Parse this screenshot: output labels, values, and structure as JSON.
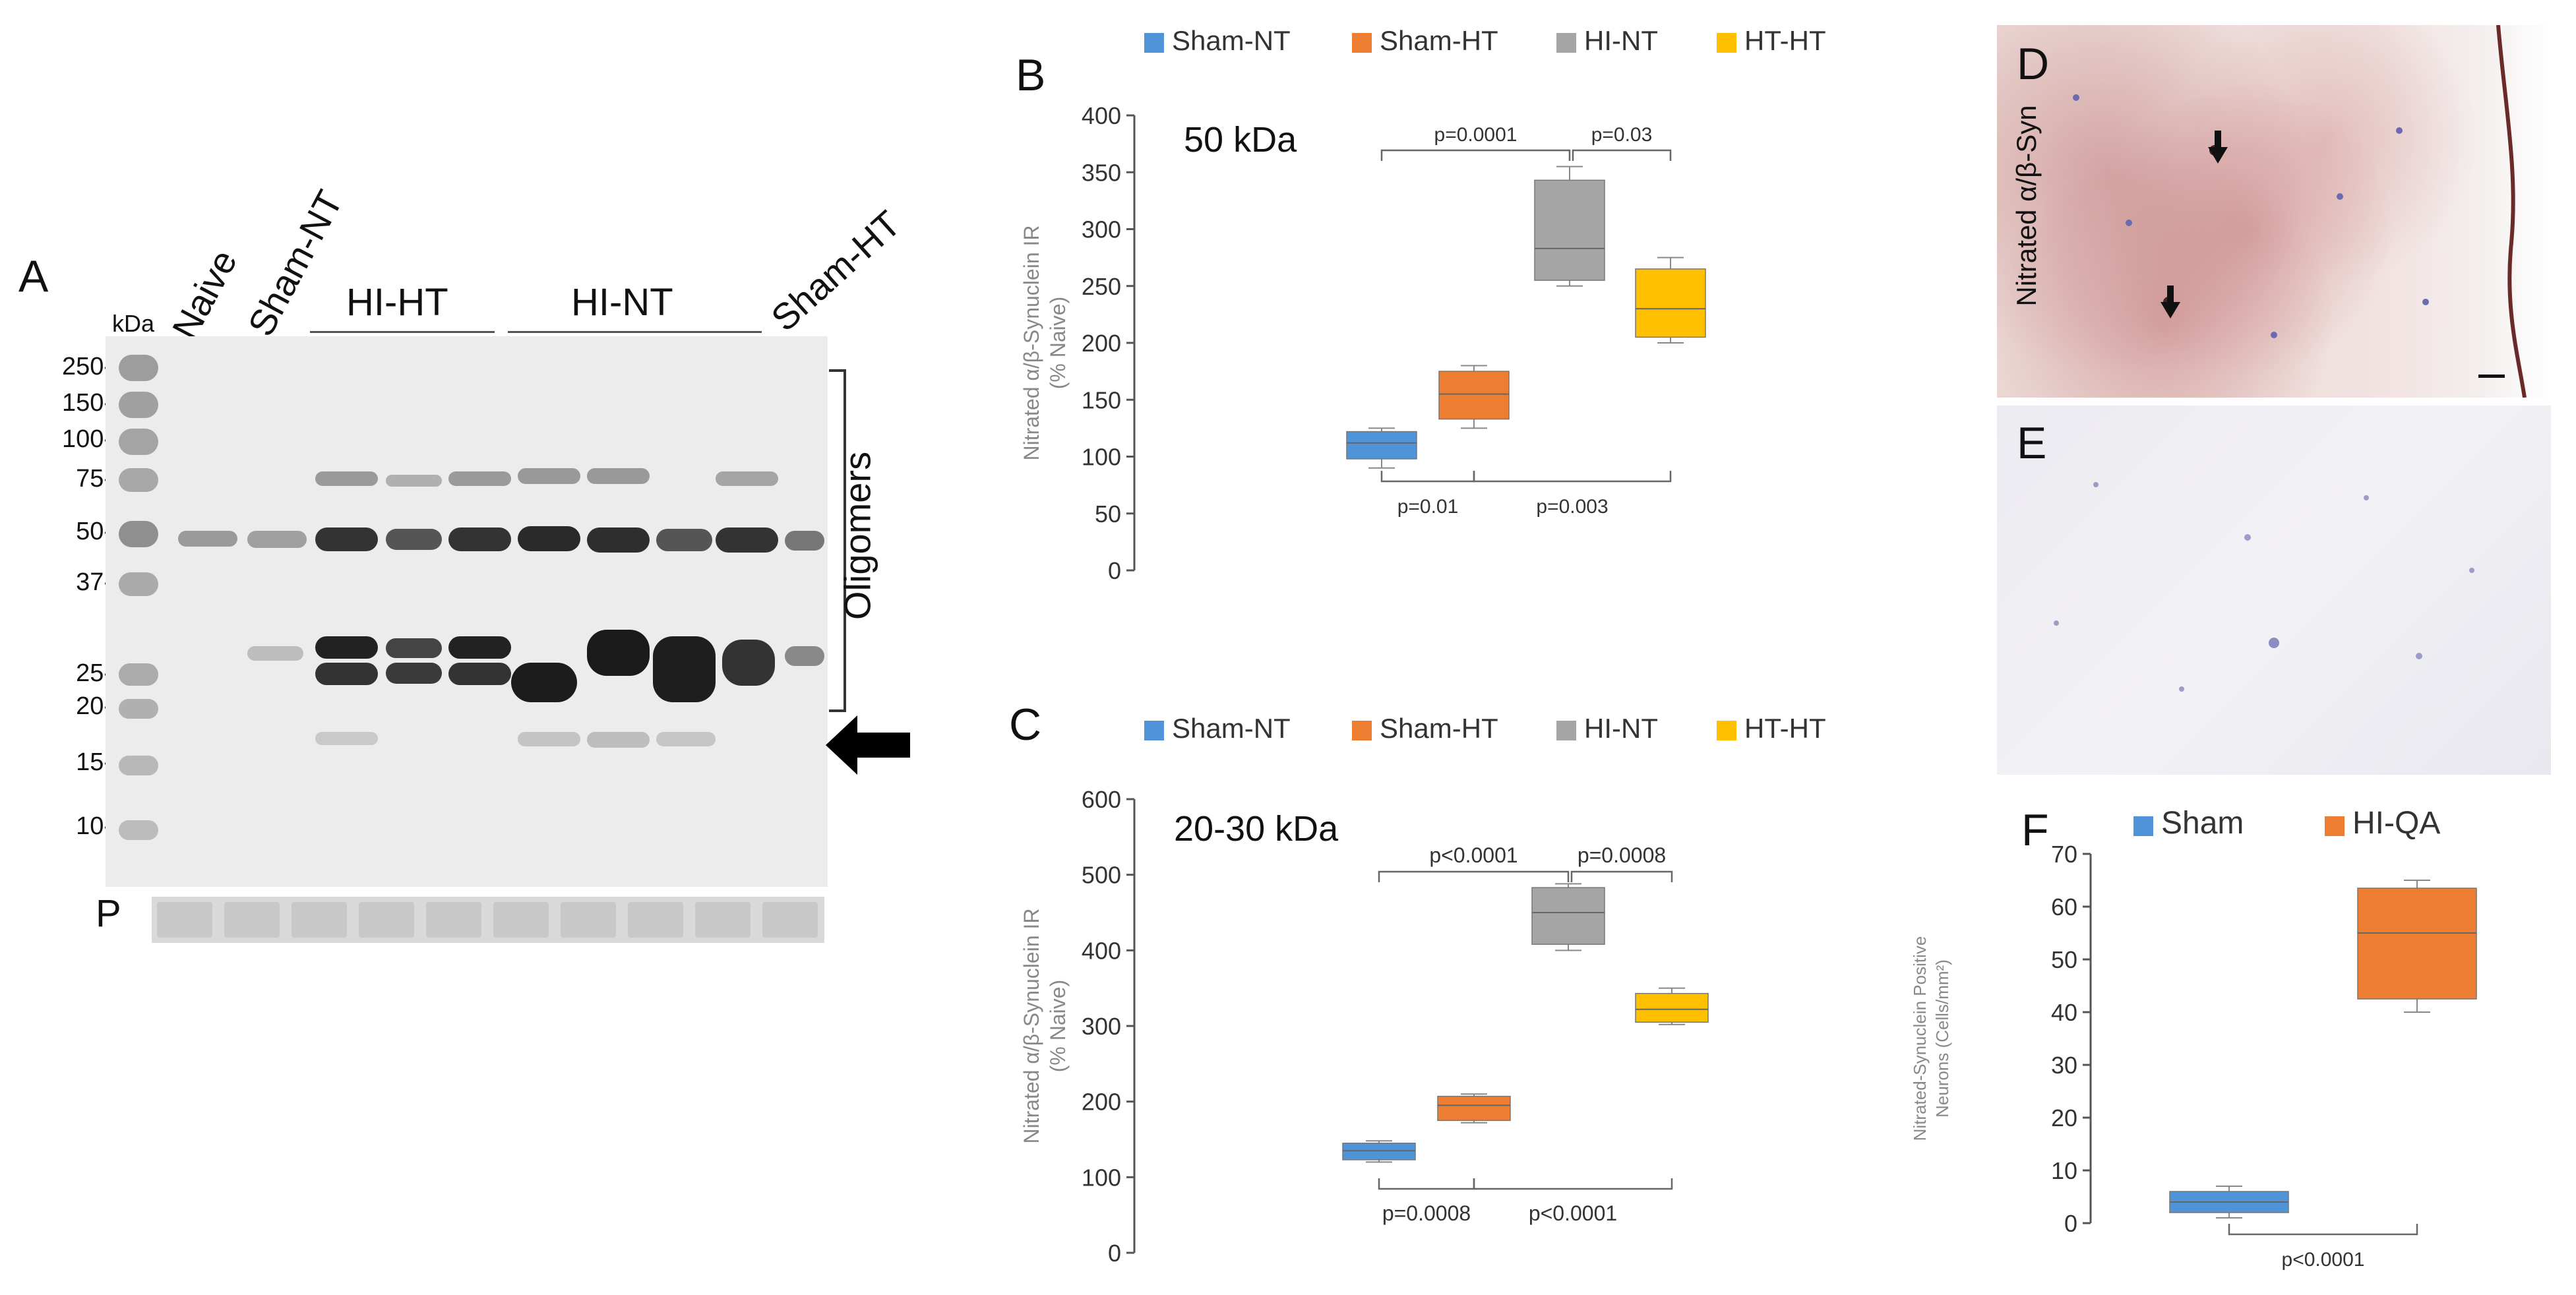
{
  "panels": {
    "A": {
      "letter": "A",
      "kda_unit": "kDa",
      "lanes": {
        "naive": "Naive",
        "sham_nt": "Sham-NT",
        "hi_ht": "HI-HT",
        "hi_nt": "HI-NT",
        "sham_ht": "Sham-HT"
      },
      "markers": [
        "250-",
        "150-",
        "100-",
        "75-",
        "50-",
        "37-",
        "25-",
        "20-",
        "15-",
        "10-"
      ],
      "oligomers_label": "Oligomers",
      "ponceau_label": "P"
    },
    "B": {
      "letter": "B"
    },
    "C": {
      "letter": "C"
    },
    "D": {
      "letter": "D",
      "stain_label": "Nitrated α/β-Syn"
    },
    "E": {
      "letter": "E"
    },
    "F": {
      "letter": "F"
    }
  },
  "colors": {
    "sham_nt": "#4f94d9",
    "sham_ht": "#ed7d31",
    "hi_nt": "#a5a5a5",
    "ht_ht": "#ffc000"
  },
  "chart_data": [
    {
      "id": "B",
      "type": "box",
      "title": "50 kDa",
      "ylabel": "Nitrated α/β-Synuclein IR\n(% Naive)",
      "ylabel_line1": "Nitrated α/β-Synuclein IR",
      "ylabel_line2": "(% Naive)",
      "ylim": [
        0,
        400
      ],
      "yticks": [
        0,
        50,
        100,
        150,
        200,
        250,
        300,
        350,
        400
      ],
      "legend": [
        "Sham-NT",
        "Sham-HT",
        "HI-NT",
        "HT-HT"
      ],
      "series": [
        {
          "name": "Sham-NT",
          "min": 90,
          "q1": 98,
          "median": 112,
          "q3": 122,
          "max": 125
        },
        {
          "name": "Sham-HT",
          "min": 125,
          "q1": 133,
          "median": 155,
          "q3": 175,
          "max": 180
        },
        {
          "name": "HI-NT",
          "min": 250,
          "q1": 255,
          "median": 283,
          "q3": 343,
          "max": 355
        },
        {
          "name": "HT-HT",
          "min": 200,
          "q1": 205,
          "median": 230,
          "q3": 265,
          "max": 275
        }
      ],
      "annotations": [
        {
          "label": "p=0.0001",
          "from": 0,
          "to": 2,
          "position": "top"
        },
        {
          "label": "p=0.03",
          "from": 2,
          "to": 3,
          "position": "top"
        },
        {
          "label": "p=0.01",
          "from": 0,
          "to": 1,
          "position": "bottom"
        },
        {
          "label": "p=0.003",
          "from": 1,
          "to": 3,
          "position": "bottom"
        }
      ]
    },
    {
      "id": "C",
      "type": "box",
      "title": "20-30 kDa",
      "ylabel_line1": "Nitrated α/β-Synuclein IR",
      "ylabel_line2": "(% Naive)",
      "ylim": [
        0,
        600
      ],
      "yticks": [
        0,
        100,
        200,
        300,
        400,
        500,
        600
      ],
      "legend": [
        "Sham-NT",
        "Sham-HT",
        "HI-NT",
        "HT-HT"
      ],
      "series": [
        {
          "name": "Sham-NT",
          "min": 120,
          "q1": 123,
          "median": 135,
          "q3": 145,
          "max": 148
        },
        {
          "name": "Sham-HT",
          "min": 172,
          "q1": 175,
          "median": 195,
          "q3": 207,
          "max": 210
        },
        {
          "name": "HI-NT",
          "min": 400,
          "q1": 408,
          "median": 450,
          "q3": 483,
          "max": 488
        },
        {
          "name": "HT-HT",
          "min": 302,
          "q1": 305,
          "median": 322,
          "q3": 343,
          "max": 350
        }
      ],
      "annotations": [
        {
          "label": "p<0.0001",
          "from": 0,
          "to": 2,
          "position": "top"
        },
        {
          "label": "p=0.0008",
          "from": 2,
          "to": 3,
          "position": "top"
        },
        {
          "label": "p=0.0008",
          "from": 0,
          "to": 1,
          "position": "bottom"
        },
        {
          "label": "p<0.0001",
          "from": 1,
          "to": 3,
          "position": "bottom"
        }
      ]
    },
    {
      "id": "F",
      "type": "box",
      "title": "",
      "ylabel_line1": "Nitrated-Synuclein Positive",
      "ylabel_line2": "Neurons (Cells/mm²)",
      "ylim": [
        0,
        70
      ],
      "yticks": [
        0,
        10,
        20,
        30,
        40,
        50,
        60,
        70
      ],
      "legend": [
        "Sham",
        "HI-QA"
      ],
      "series": [
        {
          "name": "Sham",
          "min": 1,
          "q1": 2,
          "median": 4,
          "q3": 6,
          "max": 7
        },
        {
          "name": "HI-QA",
          "min": 40,
          "q1": 42.5,
          "median": 55,
          "q3": 63.5,
          "max": 65
        }
      ],
      "annotations": [
        {
          "label": "p<0.0001",
          "from": 0,
          "to": 1,
          "position": "bottom"
        }
      ]
    }
  ]
}
